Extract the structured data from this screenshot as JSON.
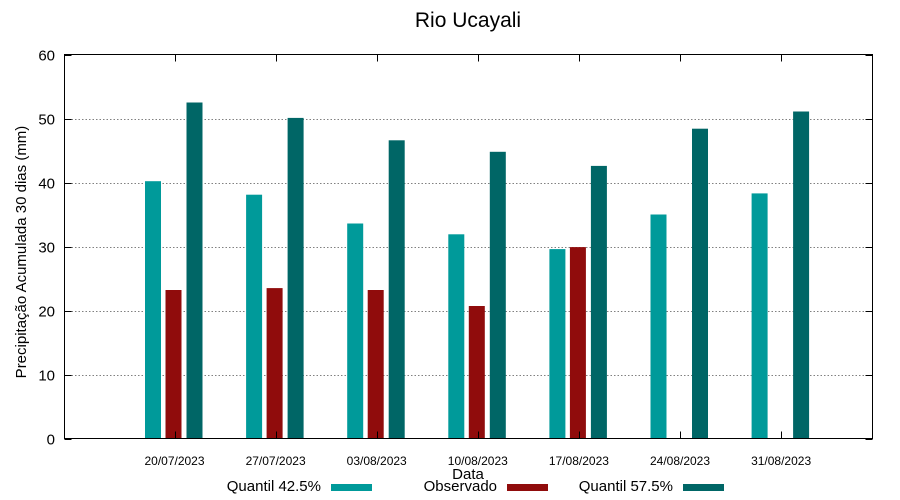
{
  "chart_data": {
    "type": "bar",
    "title": "Rio Ucayali",
    "xlabel": "Data",
    "ylabel": "Precipitação Acumulada 30 dias (mm)",
    "ylim": [
      0,
      60
    ],
    "yticks": [
      0,
      10,
      20,
      30,
      40,
      50,
      60
    ],
    "grid": true,
    "legend_position": "bottom",
    "categories": [
      "20/07/2023",
      "27/07/2023",
      "03/08/2023",
      "10/08/2023",
      "17/08/2023",
      "24/08/2023",
      "31/08/2023"
    ],
    "series": [
      {
        "name": "Quantil 42.5%",
        "color": "#009a9a",
        "values": [
          40.2,
          38.1,
          33.6,
          31.9,
          29.6,
          35.0,
          38.3
        ]
      },
      {
        "name": "Observado",
        "color": "#900c0c",
        "values": [
          23.2,
          23.5,
          23.2,
          20.7,
          29.9,
          null,
          null
        ]
      },
      {
        "name": "Quantil 57.5%",
        "color": "#006666",
        "values": [
          52.5,
          50.1,
          46.6,
          44.8,
          42.6,
          48.4,
          51.1
        ]
      }
    ]
  }
}
